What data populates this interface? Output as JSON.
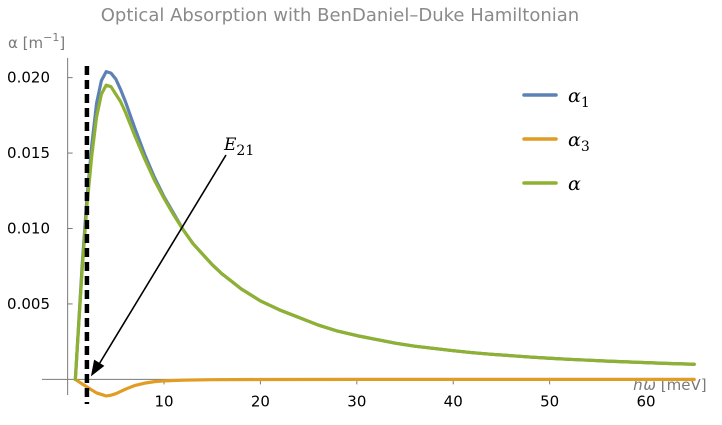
{
  "chart_data": {
    "type": "line",
    "title": "Optical Absorption with BenDaniel–Duke Hamiltonian",
    "ylabel": {
      "main": "α [m",
      "sup": "−1",
      "close": "]"
    },
    "xlabel": {
      "main": "ħω",
      "unit": " [meV]"
    },
    "xlim": [
      -1,
      65.6
    ],
    "ylim": [
      -0.0015,
      0.0215
    ],
    "x_ticks": [
      10,
      20,
      30,
      40,
      50,
      60
    ],
    "y_ticks": [
      0.005,
      0.01,
      0.015,
      0.02
    ],
    "y_tick_labels": [
      "0.005",
      "0.010",
      "0.015",
      "0.020"
    ],
    "grid": false,
    "legend_position": "top-right",
    "series": [
      {
        "name": "α",
        "sub": "1",
        "color": "#5e81b5",
        "x": [
          0.8,
          1.5,
          2.0,
          2.5,
          3.0,
          3.5,
          4.0,
          4.5,
          5.0,
          5.5,
          6.0,
          6.5,
          7.0,
          8.0,
          9.0,
          10,
          11,
          12,
          13,
          14,
          15,
          16,
          17,
          18,
          20,
          22,
          24,
          26,
          28,
          30,
          32,
          34,
          36,
          38,
          40,
          42,
          44,
          46,
          48,
          50,
          52,
          54,
          56,
          58,
          60,
          62,
          65
        ],
        "y": [
          0,
          0.0075,
          0.012,
          0.0155,
          0.0183,
          0.0198,
          0.0204,
          0.0203,
          0.0199,
          0.0192,
          0.0184,
          0.0175,
          0.0166,
          0.0149,
          0.0134,
          0.0121,
          0.011,
          0.0099,
          0.009,
          0.0083,
          0.0076,
          0.007,
          0.0065,
          0.006,
          0.0052,
          0.0046,
          0.0041,
          0.0036,
          0.0032,
          0.0029,
          0.00265,
          0.0024,
          0.0022,
          0.00205,
          0.0019,
          0.00177,
          0.00166,
          0.00157,
          0.00148,
          0.0014,
          0.00133,
          0.00127,
          0.00121,
          0.00116,
          0.00111,
          0.00106,
          0.001
        ]
      },
      {
        "name": "α",
        "sub": "3",
        "color": "#e19c24",
        "x": [
          0.8,
          1.5,
          2.0,
          2.5,
          3.0,
          3.5,
          4.0,
          4.5,
          5.0,
          5.5,
          6.0,
          7.0,
          8.0,
          9.0,
          10,
          12,
          15,
          20,
          30,
          40,
          50,
          65
        ],
        "y": [
          0,
          -0.0003,
          -0.0005,
          -0.0007,
          -0.0009,
          -0.001,
          -0.0011,
          -0.00105,
          -0.00095,
          -0.0008,
          -0.00065,
          -0.0004,
          -0.00025,
          -0.00015,
          -0.0001,
          -5e-05,
          -2e-05,
          -1e-05,
          0,
          0,
          0,
          0
        ]
      },
      {
        "name": "α",
        "sub": "",
        "color": "#8fb131",
        "x": [
          0.8,
          1.5,
          2.0,
          2.5,
          3.0,
          3.5,
          4.0,
          4.5,
          5.0,
          5.5,
          6.0,
          6.5,
          7.0,
          8.0,
          9.0,
          10,
          11,
          12,
          13,
          14,
          15,
          16,
          17,
          18,
          20,
          22,
          24,
          26,
          28,
          30,
          32,
          34,
          36,
          38,
          40,
          42,
          44,
          46,
          48,
          50,
          52,
          54,
          56,
          58,
          60,
          62,
          65
        ],
        "y": [
          0,
          0.0072,
          0.0115,
          0.0148,
          0.0174,
          0.0189,
          0.0195,
          0.0194,
          0.0189,
          0.0184,
          0.0177,
          0.0169,
          0.0161,
          0.0146,
          0.0132,
          0.012,
          0.0109,
          0.0099,
          0.009,
          0.0083,
          0.0076,
          0.007,
          0.0065,
          0.006,
          0.0052,
          0.0046,
          0.0041,
          0.0036,
          0.0032,
          0.0029,
          0.00265,
          0.0024,
          0.0022,
          0.00205,
          0.0019,
          0.00177,
          0.00166,
          0.00157,
          0.00148,
          0.0014,
          0.00133,
          0.00127,
          0.00121,
          0.00116,
          0.00111,
          0.00106,
          0.001
        ]
      }
    ],
    "annotations": [
      {
        "kind": "vertical-dashed-line",
        "x": 2.0,
        "color": "#000000"
      },
      {
        "kind": "arrow",
        "label": "E",
        "sub": "21",
        "target_x": 2.0,
        "target_y": 0.0
      }
    ]
  }
}
